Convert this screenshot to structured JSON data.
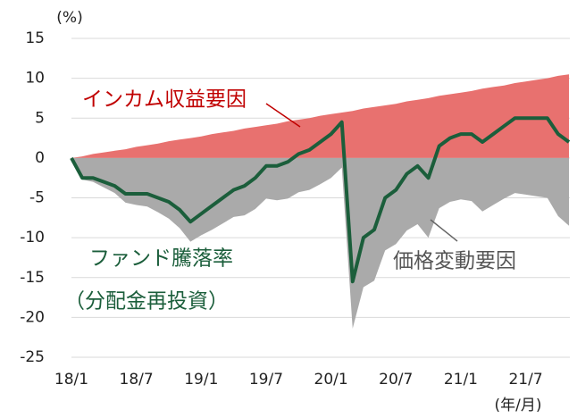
{
  "chart_data": {
    "type": "stacked-area-line",
    "y_unit_label": "(%)",
    "x_unit_label": "(年/月)",
    "categories": [
      "18/1",
      null,
      null,
      null,
      null,
      null,
      "18/7",
      null,
      null,
      null,
      null,
      null,
      "19/1",
      null,
      null,
      null,
      null,
      null,
      "19/7",
      null,
      null,
      null,
      null,
      null,
      "20/1",
      null,
      null,
      null,
      null,
      null,
      "20/7",
      null,
      null,
      null,
      null,
      null,
      "21/1",
      null,
      null,
      null,
      null,
      null,
      "21/7",
      null,
      null,
      null,
      null
    ],
    "series": [
      {
        "name": "インカム収益要因",
        "color": "#e8716f",
        "kind": "area",
        "values": [
          0,
          0.2,
          0.5,
          0.7,
          0.9,
          1.1,
          1.4,
          1.6,
          1.8,
          2.1,
          2.3,
          2.5,
          2.7,
          3.0,
          3.2,
          3.4,
          3.7,
          3.9,
          4.1,
          4.3,
          4.6,
          4.8,
          5.0,
          5.3,
          5.5,
          5.7,
          5.9,
          6.2,
          6.4,
          6.6,
          6.8,
          7.1,
          7.3,
          7.5,
          7.8,
          8.0,
          8.2,
          8.4,
          8.7,
          8.9,
          9.1,
          9.4,
          9.6,
          9.8,
          10.0,
          10.3,
          10.5
        ]
      },
      {
        "name": "価格変動要因",
        "color": "#aaaaaa",
        "kind": "area",
        "values": [
          0,
          -2.7,
          -3.0,
          -3.7,
          -4.4,
          -5.6,
          -5.9,
          -6.1,
          -6.8,
          -7.6,
          -8.8,
          -10.5,
          -9.7,
          -9.0,
          -8.2,
          -7.4,
          -7.2,
          -6.4,
          -5.1,
          -5.3,
          -5.1,
          -4.3,
          -4.0,
          -3.3,
          -2.5,
          -1.2,
          -21.4,
          -16.2,
          -15.4,
          -11.6,
          -10.8,
          -9.1,
          -8.3,
          -10.0,
          -6.3,
          -5.5,
          -5.2,
          -5.4,
          -6.7,
          -5.9,
          -5.1,
          -4.4,
          -4.6,
          -4.8,
          -5.0,
          -7.3,
          -8.5
        ]
      },
      {
        "name": "ファンド騰落率",
        "name2": "（分配金再投資）",
        "color": "#1b5e3b",
        "kind": "line",
        "values": [
          0,
          -2.5,
          -2.5,
          -3,
          -3.5,
          -4.5,
          -4.5,
          -4.5,
          -5,
          -5.5,
          -6.5,
          -8,
          -7,
          -6,
          -5,
          -4,
          -3.5,
          -2.5,
          -1,
          -1,
          -0.5,
          0.5,
          1,
          2,
          3,
          4.5,
          -15.5,
          -10,
          -9,
          -5,
          -4,
          -2,
          -1,
          -2.5,
          1.5,
          2.5,
          3,
          3,
          2,
          3,
          4,
          5,
          5,
          5,
          5,
          3,
          2
        ]
      }
    ],
    "ylim": [
      -25,
      15
    ],
    "yticks": [
      -25,
      -20,
      -15,
      -10,
      -5,
      0,
      5,
      10,
      15
    ],
    "grid": true
  }
}
